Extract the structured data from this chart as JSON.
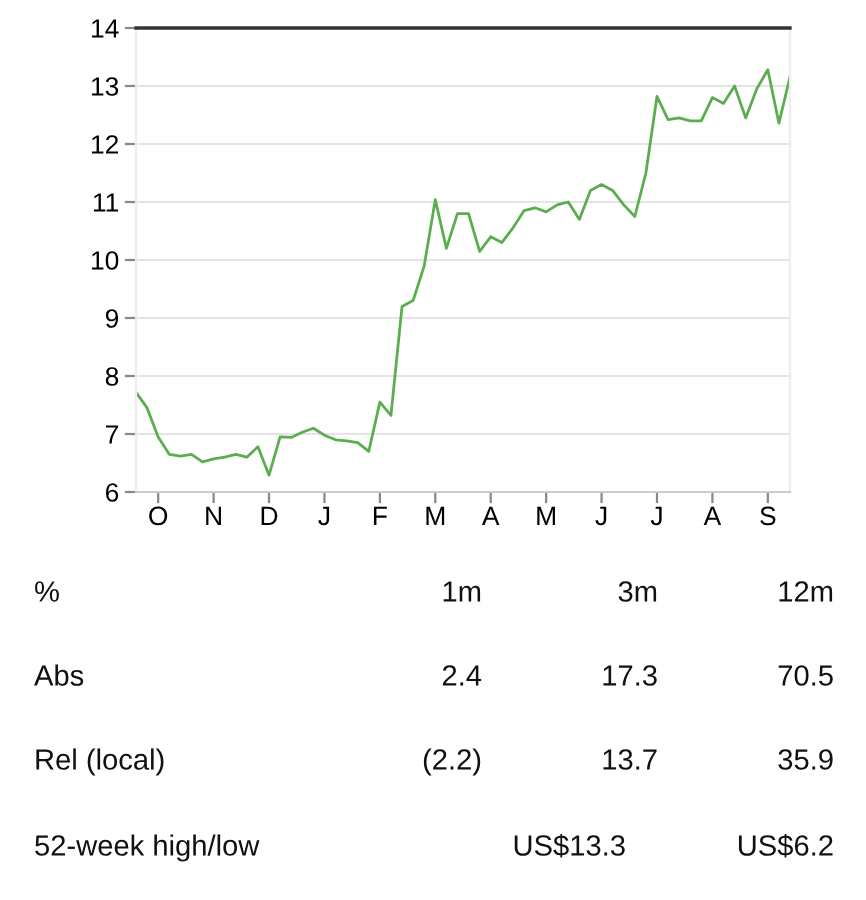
{
  "chart_data": {
    "type": "line",
    "categories": [
      null,
      null,
      "O",
      null,
      null,
      null,
      null,
      "N",
      null,
      null,
      null,
      null,
      "D",
      null,
      null,
      null,
      null,
      "J",
      null,
      null,
      null,
      null,
      "F",
      null,
      null,
      null,
      null,
      "M",
      null,
      null,
      null,
      null,
      "A",
      null,
      null,
      null,
      null,
      "M",
      null,
      null,
      null,
      null,
      "J",
      null,
      null,
      null,
      null,
      "J",
      null,
      null,
      null,
      null,
      "A",
      null,
      null,
      null,
      null,
      "S",
      null,
      null
    ],
    "series": [
      {
        "color": "#5cad4f",
        "values": [
          7.72,
          7.45,
          6.95,
          6.65,
          6.62,
          6.65,
          6.52,
          6.57,
          6.6,
          6.65,
          6.6,
          6.78,
          6.29,
          6.95,
          6.94,
          7.03,
          7.1,
          6.98,
          6.9,
          6.88,
          6.85,
          6.7,
          7.55,
          7.32,
          9.2,
          9.3,
          9.9,
          11.04,
          10.2,
          10.8,
          10.8,
          10.15,
          10.4,
          10.3,
          10.55,
          10.85,
          10.9,
          10.83,
          10.95,
          11.0,
          10.7,
          11.2,
          11.3,
          11.2,
          10.95,
          10.75,
          11.5,
          12.82,
          12.42,
          12.45,
          12.4,
          12.4,
          12.8,
          12.7,
          13.0,
          12.45,
          12.95,
          13.28,
          12.36,
          13.16
        ]
      }
    ],
    "ylim": [
      6,
      14
    ],
    "yticks": [
      6,
      7,
      8,
      9,
      10,
      11,
      12,
      13,
      14
    ],
    "grid": "y",
    "legend": false,
    "marker": "none",
    "line_style": "solid",
    "annotations": [
      "%",
      "1m",
      "3m",
      "12m",
      "Abs",
      "2.4",
      "17.3",
      "70.5",
      "Rel (local)",
      "(2.2)",
      "13.7",
      "35.9",
      "52-week high/low",
      "US$13.3",
      "US$6.2"
    ]
  }
}
